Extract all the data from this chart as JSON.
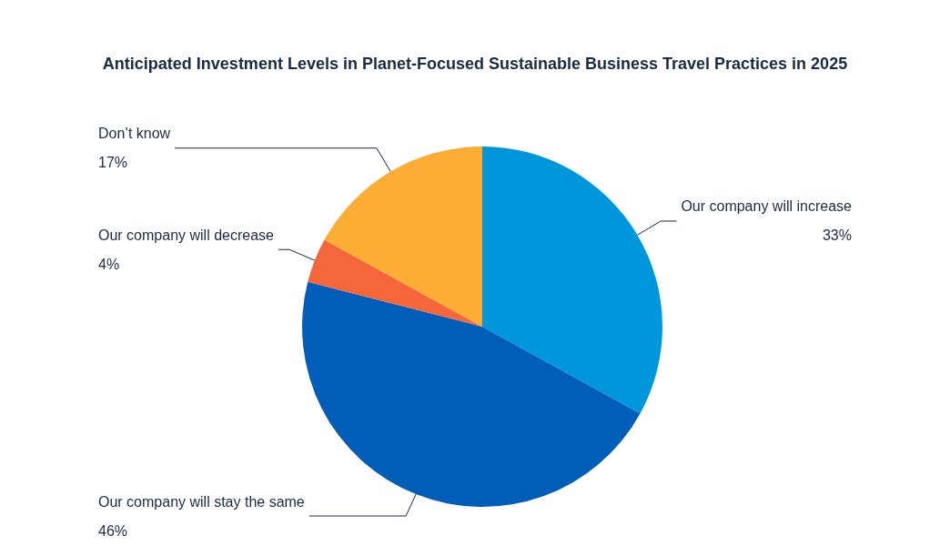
{
  "chart_data": {
    "type": "pie",
    "title": "Anticipated Investment Levels in Planet-Focused Sustainable Business Travel Practices in 2025",
    "categories": [
      "Our company will increase",
      "Our company will stay the same",
      "Our company will decrease",
      "Don’t know"
    ],
    "values": [
      33,
      46,
      4,
      17
    ],
    "value_labels": [
      "33%",
      "46%",
      "4%",
      "17%"
    ],
    "colors": [
      "#0096db",
      "#005eb8",
      "#f5663a",
      "#fbae33"
    ],
    "legend": false
  }
}
